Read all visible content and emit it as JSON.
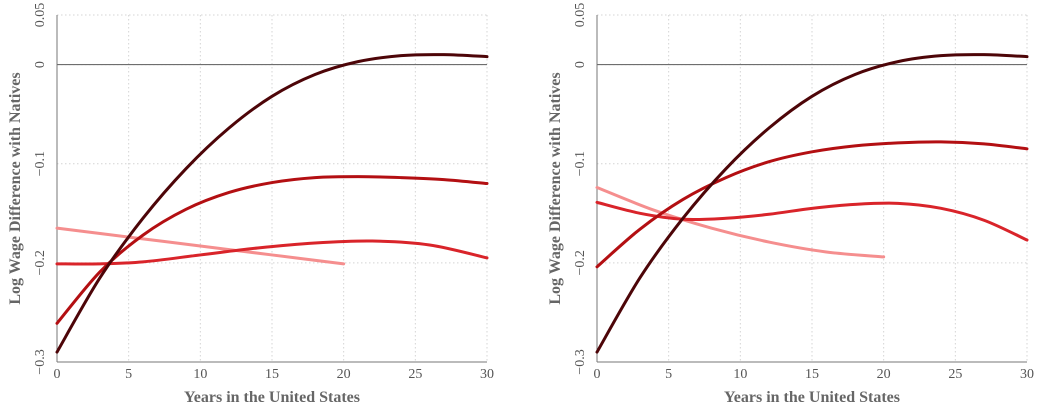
{
  "chart_data": [
    {
      "type": "line",
      "title": "",
      "xlabel": "Years in the United States",
      "ylabel": "Log Wage Difference with Natives",
      "xlim": [
        0,
        30
      ],
      "ylim": [
        -0.3,
        0.05
      ],
      "xticks": [
        0,
        5,
        10,
        15,
        20,
        25,
        30
      ],
      "yticks": [
        -0.3,
        -0.2,
        -0.1,
        0,
        0.05
      ],
      "xtick_labels": [
        "0",
        "5",
        "10",
        "15",
        "20",
        "25",
        "30"
      ],
      "ytick_labels": [
        "−0.3",
        "−0.2",
        "−0.1",
        "0",
        "0.05"
      ],
      "reference_line_y": 0,
      "grid": true,
      "series": [
        {
          "color": "#f58e8e",
          "x": [
            0,
            5,
            10,
            15,
            20
          ],
          "y": [
            -0.165,
            -0.174,
            -0.183,
            -0.192,
            -0.201
          ]
        },
        {
          "color": "#d9242a",
          "x": [
            0,
            3,
            6,
            10,
            14,
            18,
            22,
            26,
            30
          ],
          "y": [
            -0.201,
            -0.201,
            -0.199,
            -0.192,
            -0.185,
            -0.18,
            -0.178,
            -0.182,
            -0.195
          ]
        },
        {
          "color": "#b30f12",
          "x": [
            0,
            3,
            6,
            9,
            12,
            15,
            18,
            21,
            24,
            27,
            30
          ],
          "y": [
            -0.261,
            -0.209,
            -0.172,
            -0.146,
            -0.129,
            -0.119,
            -0.114,
            -0.113,
            -0.114,
            -0.116,
            -0.12
          ]
        },
        {
          "color": "#4d0508",
          "x": [
            0,
            3,
            6,
            9,
            12,
            15,
            18,
            21,
            24,
            27,
            30
          ],
          "y": [
            -0.29,
            -0.215,
            -0.155,
            -0.105,
            -0.064,
            -0.032,
            -0.01,
            0.003,
            0.009,
            0.01,
            0.008
          ]
        }
      ]
    },
    {
      "type": "line",
      "title": "",
      "xlabel": "Years in the United States",
      "ylabel": "Log Wage Difference with Natives",
      "xlim": [
        0,
        30
      ],
      "ylim": [
        -0.3,
        0.05
      ],
      "xticks": [
        0,
        5,
        10,
        15,
        20,
        25,
        30
      ],
      "yticks": [
        -0.3,
        -0.2,
        -0.1,
        0,
        0.05
      ],
      "xtick_labels": [
        "0",
        "5",
        "10",
        "15",
        "20",
        "25",
        "30"
      ],
      "ytick_labels": [
        "−0.3",
        "−0.2",
        "−0.1",
        "0",
        "0.05"
      ],
      "reference_line_y": 0,
      "grid": true,
      "series": [
        {
          "color": "#f58e8e",
          "x": [
            0,
            4,
            8,
            12,
            16,
            20
          ],
          "y": [
            -0.124,
            -0.147,
            -0.165,
            -0.179,
            -0.189,
            -0.194
          ]
        },
        {
          "color": "#d9242a",
          "x": [
            0,
            3,
            6,
            9,
            12,
            15,
            18,
            21,
            24,
            27,
            30
          ],
          "y": [
            -0.139,
            -0.15,
            -0.156,
            -0.155,
            -0.151,
            -0.145,
            -0.141,
            -0.14,
            -0.145,
            -0.157,
            -0.177
          ]
        },
        {
          "color": "#b30f12",
          "x": [
            0,
            3,
            6,
            9,
            12,
            15,
            18,
            21,
            24,
            27,
            30
          ],
          "y": [
            -0.204,
            -0.166,
            -0.136,
            -0.114,
            -0.098,
            -0.088,
            -0.082,
            -0.079,
            -0.078,
            -0.08,
            -0.085
          ]
        },
        {
          "color": "#4d0508",
          "x": [
            0,
            3,
            6,
            9,
            12,
            15,
            18,
            21,
            24,
            27,
            30
          ],
          "y": [
            -0.29,
            -0.215,
            -0.155,
            -0.105,
            -0.064,
            -0.032,
            -0.01,
            0.003,
            0.009,
            0.01,
            0.008
          ]
        }
      ]
    }
  ]
}
